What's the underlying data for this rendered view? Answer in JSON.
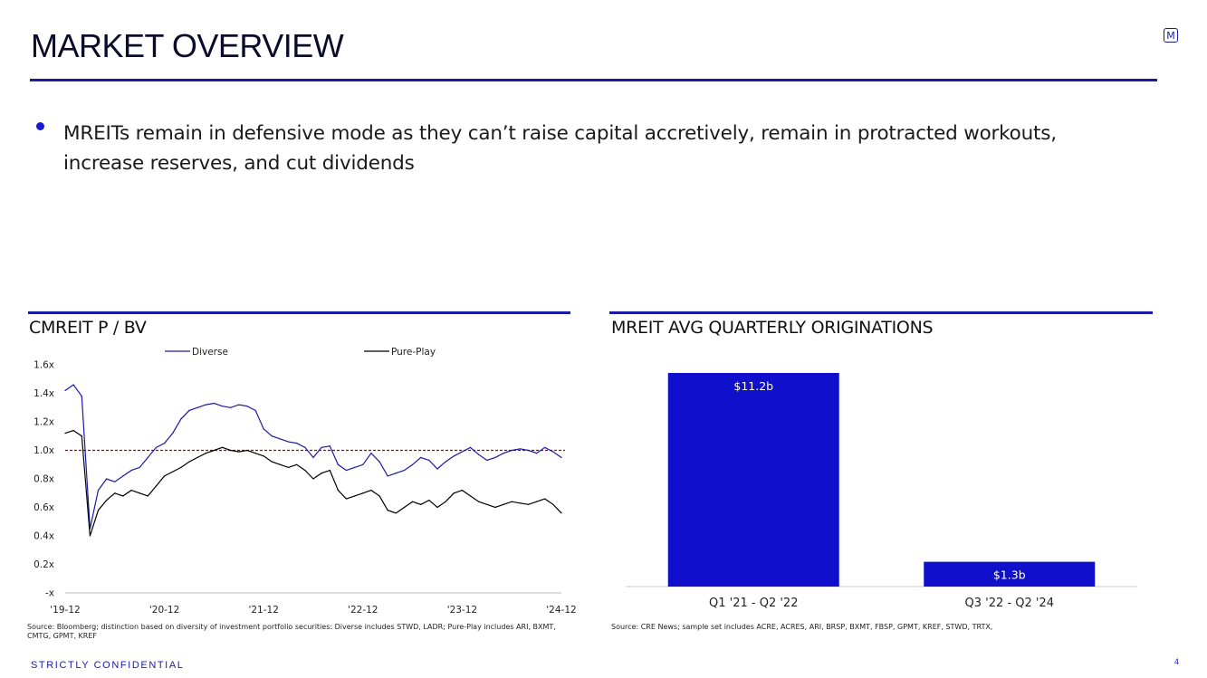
{
  "page": {
    "title": "MARKET OVERVIEW",
    "logo_letter": "M",
    "bullet": "MREITs remain in defensive mode as they can’t raise capital accretively, remain in protracted workouts, increase reserves, and cut dividends",
    "confidential": "STRICTLY CONFIDENTIAL",
    "page_number": "4",
    "accent_color": "#1a1aa6"
  },
  "left_panel": {
    "title": "CMREIT P / BV",
    "footnote": "Source: Bloomberg; distinction based on diversity of investment portfolio securities: Diverse includes STWD, LADR; Pure-Play includes ARI, BXMT, CMTG, GPMT, KREF"
  },
  "right_panel": {
    "title": "MREIT AVG QUARTERLY ORIGINATIONS",
    "footnote": "Source: CRE News; sample set includes ACRE, ACRES, ARI, BRSP, BXMT, FBSP, GPMT, KREF, STWD, TRTX,"
  },
  "chart_data": [
    {
      "type": "line",
      "title": "CMREIT P / BV",
      "x": [
        "'19-12",
        "'20-01",
        "'20-02",
        "'20-03",
        "'20-04",
        "'20-05",
        "'20-06",
        "'20-07",
        "'20-08",
        "'20-09",
        "'20-10",
        "'20-11",
        "'20-12",
        "'21-01",
        "'21-02",
        "'21-03",
        "'21-04",
        "'21-05",
        "'21-06",
        "'21-07",
        "'21-08",
        "'21-09",
        "'21-10",
        "'21-11",
        "'21-12",
        "'22-01",
        "'22-02",
        "'22-03",
        "'22-04",
        "'22-05",
        "'22-06",
        "'22-07",
        "'22-08",
        "'22-09",
        "'22-10",
        "'22-11",
        "'22-12",
        "'23-01",
        "'23-02",
        "'23-03",
        "'23-04",
        "'23-05",
        "'23-06",
        "'23-07",
        "'23-08",
        "'23-09",
        "'23-10",
        "'23-11",
        "'23-12",
        "'24-01",
        "'24-02",
        "'24-03",
        "'24-04",
        "'24-05",
        "'24-06",
        "'24-07",
        "'24-08",
        "'24-09",
        "'24-10",
        "'24-11",
        "'24-12"
      ],
      "x_ticks": [
        "'19-12",
        "'20-12",
        "'21-12",
        "'22-12",
        "'23-12",
        "'24-12"
      ],
      "y_ticks": [
        "-x",
        "0.2x",
        "0.4x",
        "0.6x",
        "0.8x",
        "1.0x",
        "1.2x",
        "1.4x",
        "1.6x"
      ],
      "ylim": [
        0,
        1.6
      ],
      "reference_line": 1.0,
      "legend_placement": "top",
      "series": [
        {
          "name": "Diverse",
          "color": "#1a1aa6",
          "values": [
            1.42,
            1.46,
            1.38,
            0.45,
            0.72,
            0.8,
            0.78,
            0.82,
            0.86,
            0.88,
            0.95,
            1.02,
            1.05,
            1.12,
            1.22,
            1.28,
            1.3,
            1.32,
            1.33,
            1.31,
            1.3,
            1.32,
            1.31,
            1.28,
            1.15,
            1.1,
            1.08,
            1.06,
            1.05,
            1.02,
            0.95,
            1.02,
            1.03,
            0.9,
            0.86,
            0.88,
            0.9,
            0.98,
            0.92,
            0.82,
            0.84,
            0.86,
            0.9,
            0.95,
            0.93,
            0.87,
            0.92,
            0.96,
            0.99,
            1.02,
            0.97,
            0.93,
            0.95,
            0.98,
            1.0,
            1.01,
            1.0,
            0.98,
            1.02,
            0.99,
            0.95
          ]
        },
        {
          "name": "Pure-Play",
          "color": "#000000",
          "values": [
            1.12,
            1.14,
            1.1,
            0.4,
            0.58,
            0.65,
            0.7,
            0.68,
            0.72,
            0.7,
            0.68,
            0.75,
            0.82,
            0.85,
            0.88,
            0.92,
            0.95,
            0.98,
            1.0,
            1.02,
            1.0,
            0.99,
            1.0,
            0.98,
            0.96,
            0.92,
            0.9,
            0.88,
            0.9,
            0.86,
            0.8,
            0.84,
            0.86,
            0.72,
            0.66,
            0.68,
            0.7,
            0.72,
            0.68,
            0.58,
            0.56,
            0.6,
            0.64,
            0.62,
            0.65,
            0.6,
            0.64,
            0.7,
            0.72,
            0.68,
            0.64,
            0.62,
            0.6,
            0.62,
            0.64,
            0.63,
            0.62,
            0.64,
            0.66,
            0.62,
            0.56
          ]
        }
      ]
    },
    {
      "type": "bar",
      "title": "MREIT AVG QUARTERLY ORIGINATIONS",
      "categories": [
        "Q1 '21 - Q2 '22",
        "Q3 '22 - Q2 '24"
      ],
      "values": [
        11.2,
        1.3
      ],
      "labels": [
        "$11.2b",
        "$1.3b"
      ],
      "unit": "$b",
      "ylim": [
        0,
        11.2
      ],
      "bar_color": "#1010cc"
    }
  ]
}
